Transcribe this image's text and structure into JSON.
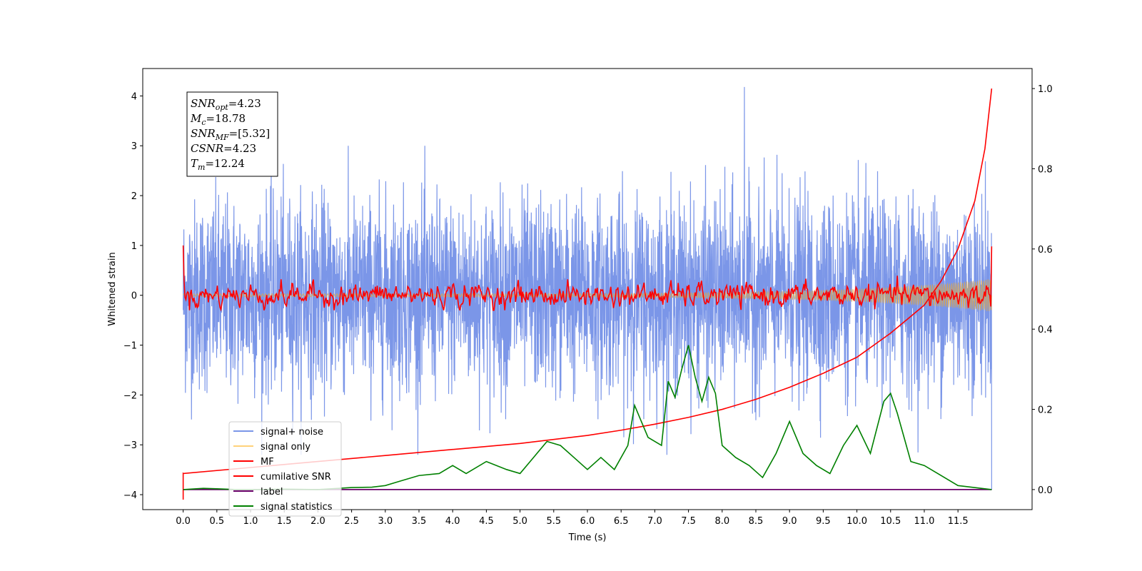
{
  "chart_data": {
    "type": "line",
    "title": "",
    "xlabel": "Time (s)",
    "ylabel": "Whitened strain",
    "xlim": [
      -0.6,
      12.6
    ],
    "ylim": [
      -4.3,
      4.55
    ],
    "y2lim": [
      -0.05,
      1.05
    ],
    "xticks": [
      "0.0",
      "0.5",
      "1.0",
      "1.5",
      "2.0",
      "2.5",
      "3.0",
      "3.5",
      "4.0",
      "4.5",
      "5.0",
      "5.5",
      "6.0",
      "6.5",
      "7.0",
      "7.5",
      "8.0",
      "8.5",
      "9.0",
      "9.5",
      "10.0",
      "10.5",
      "11.0",
      "11.5"
    ],
    "yticks": [
      "4",
      "3",
      "2",
      "1",
      "0",
      "−1",
      "−2",
      "−3",
      "−4"
    ],
    "y2ticks": [
      "1.0",
      "0.8",
      "0.6",
      "0.4",
      "0.2",
      "0.0"
    ],
    "grid": false,
    "legend_position": "lower-left",
    "legend": [
      {
        "name": "signal+ noise",
        "color": "#7b96e8"
      },
      {
        "name": "signal only",
        "color": "#ffd27a"
      },
      {
        "name": "MF",
        "color": "#ff0000"
      },
      {
        "name": "cumilative SNR",
        "color": "#ff0000"
      },
      {
        "name": "label",
        "color": "#6a006a"
      },
      {
        "name": "signal statistics",
        "color": "#008000"
      }
    ],
    "annotation": {
      "lines": [
        {
          "sym": "SNR",
          "sub": "opt",
          "rest": "=4.23"
        },
        {
          "sym": "M",
          "sub": "c",
          "rest": "=18.78"
        },
        {
          "sym": "SNR",
          "sub": "MF",
          "rest": "=[5.32]"
        },
        {
          "sym": "CSNR",
          "sub": "",
          "rest": "=4.23"
        },
        {
          "sym": "T",
          "sub": "m",
          "rest": "=12.24"
        }
      ]
    },
    "series": [
      {
        "name": "signal+ noise",
        "axis": "left",
        "style": "random noise band",
        "t_range": [
          0,
          12.0
        ],
        "std": 0.95,
        "peak_max": 4.18,
        "peak_min": -3.9
      },
      {
        "name": "signal only",
        "axis": "left",
        "style": "chirp growing in amplitude",
        "t_range": [
          0,
          12.0
        ],
        "amp_end": 0.3
      },
      {
        "name": "MF",
        "axis": "left",
        "style": "noisy trace around zero",
        "t_range": [
          0,
          12.0
        ],
        "start": 1.0,
        "end": 0.98,
        "range": [
          -0.3,
          0.6
        ]
      },
      {
        "name": "cumilative SNR",
        "axis": "right",
        "x": [
          0,
          1,
          2,
          3,
          4,
          5,
          6,
          6.5,
          7,
          7.5,
          8,
          8.5,
          9,
          9.5,
          10,
          10.5,
          11,
          11.25,
          11.5,
          11.75,
          11.9,
          12.0
        ],
        "y": [
          0.04,
          0.055,
          0.07,
          0.085,
          0.1,
          0.115,
          0.135,
          0.148,
          0.163,
          0.18,
          0.2,
          0.225,
          0.255,
          0.29,
          0.33,
          0.39,
          0.46,
          0.52,
          0.6,
          0.72,
          0.85,
          1.0
        ]
      },
      {
        "name": "label",
        "axis": "right",
        "x": [
          0,
          12.0
        ],
        "y": [
          0.0,
          0.0
        ]
      },
      {
        "name": "signal statistics",
        "axis": "right",
        "x": [
          0,
          0.3,
          0.5,
          0.8,
          1.0,
          1.5,
          2.0,
          2.5,
          2.8,
          3.0,
          3.2,
          3.5,
          3.8,
          4.0,
          4.2,
          4.5,
          4.8,
          5.0,
          5.2,
          5.4,
          5.6,
          5.8,
          6.0,
          6.2,
          6.4,
          6.6,
          6.7,
          6.8,
          6.9,
          7.0,
          7.1,
          7.2,
          7.3,
          7.4,
          7.5,
          7.6,
          7.7,
          7.8,
          7.9,
          8.0,
          8.2,
          8.4,
          8.6,
          8.8,
          9.0,
          9.2,
          9.4,
          9.6,
          9.8,
          10.0,
          10.2,
          10.4,
          10.5,
          10.6,
          10.8,
          11.0,
          11.2,
          11.5,
          12.0
        ],
        "y": [
          0.0,
          0.003,
          0.002,
          0.0,
          0.0,
          0.001,
          0.0,
          0.005,
          0.006,
          0.01,
          0.02,
          0.035,
          0.04,
          0.06,
          0.04,
          0.07,
          0.05,
          0.04,
          0.08,
          0.12,
          0.11,
          0.08,
          0.05,
          0.08,
          0.05,
          0.11,
          0.21,
          0.17,
          0.13,
          0.12,
          0.11,
          0.27,
          0.23,
          0.3,
          0.36,
          0.28,
          0.22,
          0.28,
          0.24,
          0.11,
          0.08,
          0.06,
          0.03,
          0.09,
          0.17,
          0.09,
          0.06,
          0.04,
          0.11,
          0.16,
          0.09,
          0.22,
          0.24,
          0.19,
          0.07,
          0.06,
          0.04,
          0.01,
          0.0
        ]
      }
    ]
  }
}
